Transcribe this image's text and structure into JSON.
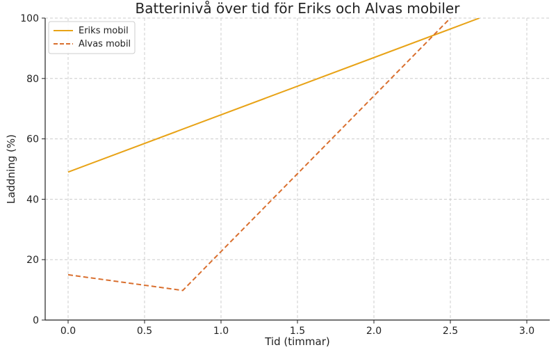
{
  "chart_data": {
    "type": "line",
    "title": "Batterinivå över tid för Eriks och Alvas mobiler",
    "xlabel": "Tid (timmar)",
    "ylabel": "Laddning (%)",
    "xlim": [
      -0.15,
      3.15
    ],
    "ylim": [
      0,
      100
    ],
    "xticks": [
      "0.0",
      "0.5",
      "1.0",
      "1.5",
      "2.0",
      "2.5",
      "3.0"
    ],
    "xtick_values": [
      0,
      0.5,
      1.0,
      1.5,
      2.0,
      2.5,
      3.0
    ],
    "yticks": [
      "0",
      "20",
      "40",
      "60",
      "80",
      "100"
    ],
    "ytick_values": [
      0,
      20,
      40,
      60,
      80,
      100
    ],
    "grid": true,
    "legend_position": "top-left",
    "series": [
      {
        "name": "Eriks mobil",
        "color": "#e8a317",
        "dashed": false,
        "x": [
          0,
          2.69
        ],
        "y": [
          49,
          100
        ]
      },
      {
        "name": "Alvas mobil",
        "color": "#d96f2e",
        "dashed": true,
        "x": [
          0,
          0.75,
          2.5
        ],
        "y": [
          15,
          9.8,
          100
        ]
      }
    ]
  }
}
